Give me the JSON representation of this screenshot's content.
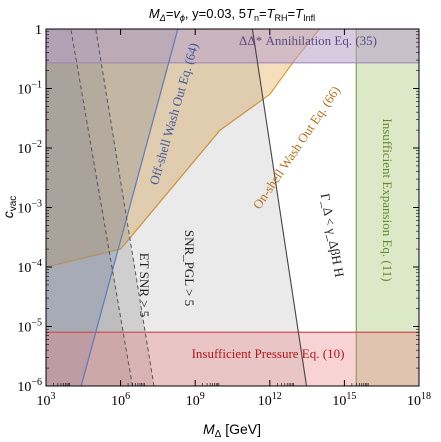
{
  "chart_data": {
    "type": "area",
    "title": "M_Δ=v_φ, y=0.03, 5T_n=T_RH=T_Infl",
    "title_parts": {
      "a": "M",
      "a_sub": "Δ",
      "b": "=",
      "c": "v",
      "c_sub": "ϕ",
      "d": ", y=0.03, 5",
      "e": "T",
      "e_sub": "n",
      "f": "=",
      "g": "T",
      "g_sub": "RH",
      "h": "=",
      "i": "T",
      "i_sub": "Infl"
    },
    "xlabel": "M_Δ [GeV]",
    "xlabel_parts": {
      "main": "M",
      "sub": "Δ",
      "unit": " [GeV]"
    },
    "ylabel": "c_vac",
    "ylabel_parts": {
      "main": "c",
      "sub": "vac"
    },
    "x_scale": "log",
    "y_scale": "log",
    "xlim": [
      1000,
      1e+18
    ],
    "ylim": [
      1e-06,
      1
    ],
    "x_ticks": [
      {
        "value": 1000,
        "base": "10",
        "exp": "3"
      },
      {
        "value": 1000000.0,
        "base": "10",
        "exp": "6"
      },
      {
        "value": 1000000000.0,
        "base": "10",
        "exp": "9"
      },
      {
        "value": 1000000000000.0,
        "base": "10",
        "exp": "12"
      },
      {
        "value": 1000000000000000.0,
        "base": "10",
        "exp": "15"
      },
      {
        "value": 1e+18,
        "base": "10",
        "exp": "18"
      }
    ],
    "y_ticks": [
      {
        "value": 1,
        "text": "1",
        "base": "",
        "exp": ""
      },
      {
        "value": 0.1,
        "text": "",
        "base": "10",
        "exp": "−1"
      },
      {
        "value": 0.01,
        "text": "",
        "base": "10",
        "exp": "−2"
      },
      {
        "value": 0.001,
        "text": "",
        "base": "10",
        "exp": "−3"
      },
      {
        "value": 0.0001,
        "text": "",
        "base": "10",
        "exp": "−4"
      },
      {
        "value": 1e-05,
        "text": "",
        "base": "10",
        "exp": "−5"
      },
      {
        "value": 1e-06,
        "text": "",
        "base": "10",
        "exp": "−6"
      }
    ],
    "regions": {
      "annihilation": {
        "label": "ΔΔ* Annihilation Eq. (35)",
        "y_min": 0.27,
        "color": "#b8a0c8"
      },
      "offshell": {
        "label": "Off-shell Wash Out Eq. (64)",
        "line": [
          [
            26000.0,
            1e-06
          ],
          [
            200000000.0,
            1
          ]
        ],
        "color": "#7f9ccf"
      },
      "onshell": {
        "label": "On-shell Wash Out Eq. (66)",
        "boundary": [
          [
            1000,
            0.0001
          ],
          [
            1000000.0,
            0.0002
          ],
          [
            100000000.0,
            0.002
          ],
          [
            10000000000.0,
            0.02
          ],
          [
            1000000000000.0,
            0.08
          ],
          [
            10000000000000.0,
            0.3
          ],
          [
            100000000000000.0,
            1
          ]
        ],
        "color": "#e0a040"
      },
      "snr_pgl": {
        "label": "SNR_PGL > 5",
        "line": [
          [
            22000000.0,
            1e-06
          ],
          [
            100000.0,
            1
          ]
        ],
        "color": "#9a9a9a"
      },
      "et_snr": {
        "label": "ET SNR > 5",
        "line": [
          [
            3000000.0,
            1e-06
          ],
          [
            10000.0,
            1
          ]
        ],
        "color": "#9a9a9a"
      },
      "gamma_delta": {
        "label": "Γ_Δ < γ_ΔβH H",
        "line": [
          [
            30000000000000.0,
            1e-06
          ],
          [
            200000000000.0,
            1
          ]
        ],
        "color": "#555555"
      },
      "expansion": {
        "label": "Insufficient Expansion Eq. (11)",
        "x_min": 3000000000000000.0,
        "color": "#a8c878"
      },
      "pressure": {
        "label": "Insufficient Pressure Eq. (10)",
        "y_max": 8e-06,
        "color": "#e88080"
      }
    }
  }
}
